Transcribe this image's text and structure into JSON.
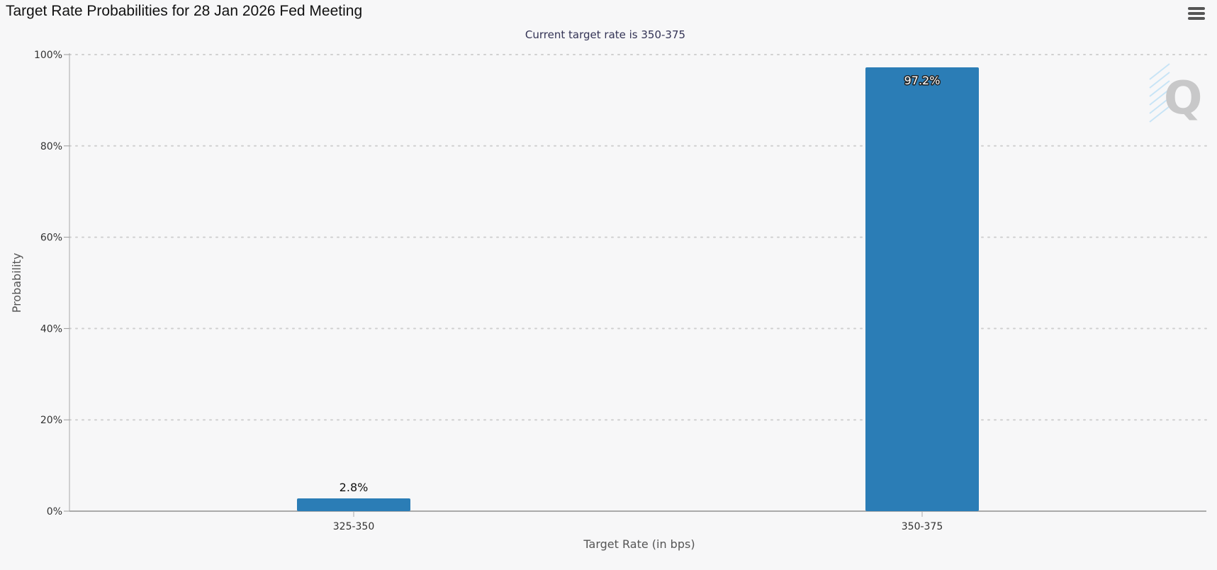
{
  "title": "Target Rate Probabilities for 28 Jan 2026 Fed Meeting",
  "subtitle": "Current target rate is 350-375",
  "menu": {
    "icon": "hamburger-menu-icon"
  },
  "watermark": {
    "icon": "q-logo-icon",
    "letter": "Q"
  },
  "colors": {
    "bar": "#2b7db6",
    "background": "#f7f7f8",
    "grid": "#d0d0d0"
  },
  "chart_data": {
    "type": "bar",
    "title": "Target Rate Probabilities for 28 Jan 2026 Fed Meeting",
    "subtitle": "Current target rate is 350-375",
    "categories": [
      "325-350",
      "350-375"
    ],
    "values": [
      2.8,
      97.2
    ],
    "data_labels": [
      "2.8%",
      "97.2%"
    ],
    "xlabel": "Target Rate (in bps)",
    "ylabel": "Probability",
    "ylim": [
      0,
      100
    ],
    "yticks": [
      0,
      20,
      40,
      60,
      80,
      100
    ],
    "ytick_labels": [
      "0%",
      "20%",
      "40%",
      "60%",
      "80%",
      "100%"
    ],
    "grid": true,
    "legend": "none"
  }
}
